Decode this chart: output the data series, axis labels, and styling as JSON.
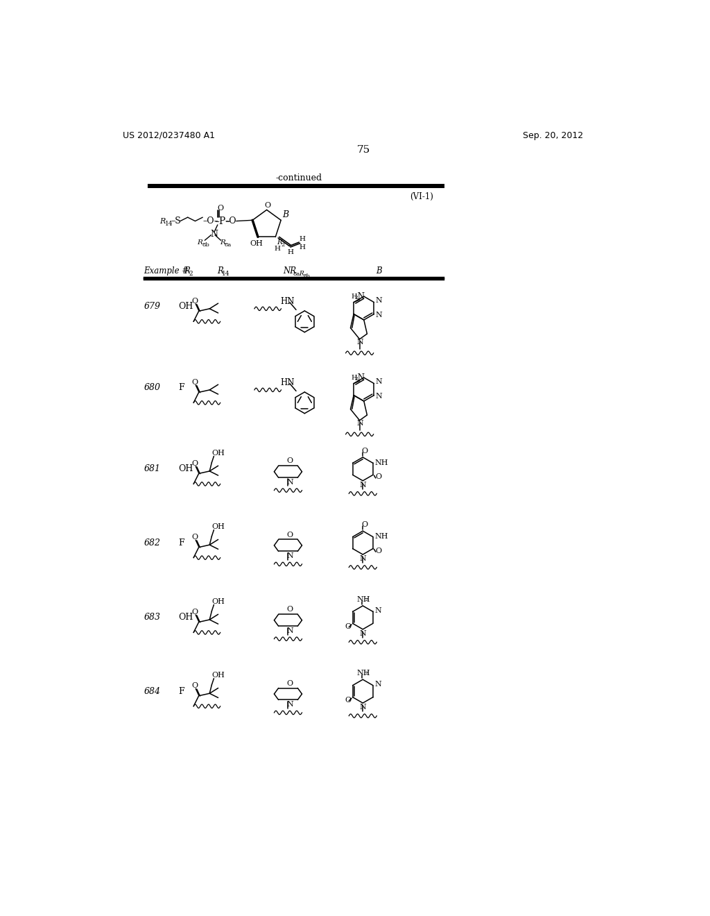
{
  "page_number": "75",
  "patent_number": "US 2012/0237480 A1",
  "patent_date": "Sep. 20, 2012",
  "continued_label": "-continued",
  "formula_label": "(VI-1)",
  "background_color": "#ffffff",
  "text_color": "#000000",
  "rows": [
    {
      "ex": "679",
      "r2": "OH"
    },
    {
      "ex": "680",
      "r2": "F"
    },
    {
      "ex": "681",
      "r2": "OH"
    },
    {
      "ex": "682",
      "r2": "F"
    },
    {
      "ex": "683",
      "r2": "OH"
    },
    {
      "ex": "684",
      "r2": "F"
    }
  ]
}
